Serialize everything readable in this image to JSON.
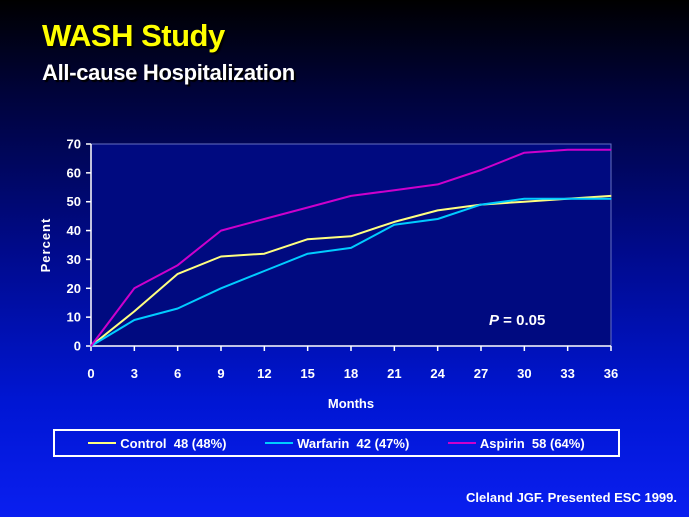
{
  "header": {
    "title": "WASH Study",
    "subtitle": "All-cause Hospitalization"
  },
  "colors": {
    "title": "#ffff00",
    "plot_background": "#000a80",
    "axis": "#ffffff"
  },
  "chart_data": {
    "type": "line",
    "x": [
      0,
      3,
      6,
      9,
      12,
      15,
      18,
      21,
      24,
      27,
      30,
      33,
      36
    ],
    "xlabel": "Months",
    "ylabel": "Percent",
    "xlim": [
      0,
      36
    ],
    "ylim": [
      0,
      70
    ],
    "xticks": [
      "0",
      "3",
      "6",
      "9",
      "12",
      "15",
      "18",
      "21",
      "24",
      "27",
      "30",
      "33",
      "36"
    ],
    "yticks": [
      "0",
      "10",
      "20",
      "30",
      "40",
      "50",
      "60",
      "70"
    ],
    "grid": false,
    "legend_position": "bottom",
    "annotation": {
      "p_label": "P",
      "p_value": "= 0.05"
    },
    "series": [
      {
        "name": "Control  48 (48%)",
        "color": "#ffff80",
        "values": [
          0,
          12,
          25,
          31,
          32,
          37,
          38,
          43,
          47,
          49,
          50,
          51,
          52
        ]
      },
      {
        "name": "Warfarin  42 (47%)",
        "color": "#00ccff",
        "values": [
          0,
          9,
          13,
          20,
          26,
          32,
          34,
          42,
          44,
          49,
          51,
          51,
          51
        ]
      },
      {
        "name": "Aspirin  58 (64%)",
        "color": "#cc00cc",
        "values": [
          0,
          20,
          28,
          40,
          44,
          48,
          52,
          54,
          56,
          61,
          67,
          68,
          68
        ]
      }
    ]
  },
  "footer": {
    "credit": "Cleland JGF. Presented ESC 1999."
  }
}
